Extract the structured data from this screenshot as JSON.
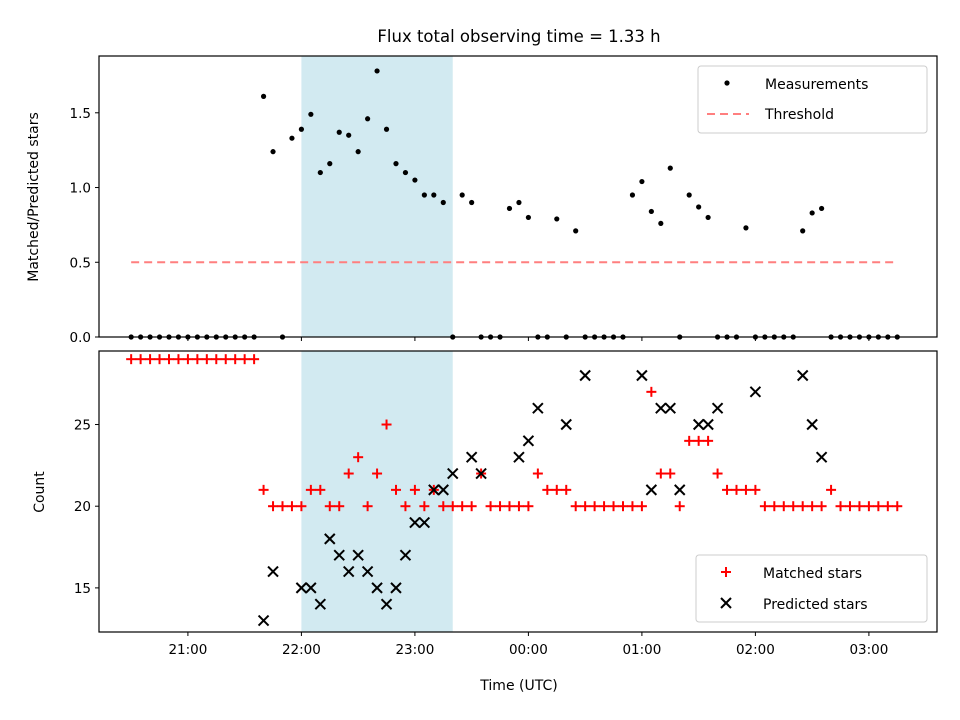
{
  "title": "Flux total observing time = 1.33 h",
  "colors": {
    "measurement": "#000000",
    "threshold": "#ff7f7f",
    "matched": "#ff0000",
    "predicted": "#000000",
    "shade": "#add8e6"
  },
  "chart_data": [
    {
      "type": "scatter",
      "ylabel": "Matched/Predicted stars",
      "ylim": [
        0,
        1.88
      ],
      "yticks": [
        "0.0",
        "0.5",
        "1.0",
        "1.5"
      ],
      "legend": [
        "Measurements",
        "Threshold"
      ],
      "legend_position": "top-right",
      "threshold": {
        "name": "Threshold",
        "value": 0.5,
        "x_start": "20:30",
        "x_end": "03:15"
      },
      "shaded_interval": [
        "22:00",
        "23:20"
      ],
      "measurements": {
        "name": "Measurements",
        "x": [
          "20:30",
          "20:35",
          "20:40",
          "20:45",
          "20:50",
          "20:55",
          "21:00",
          "21:05",
          "21:10",
          "21:15",
          "21:20",
          "21:25",
          "21:30",
          "21:35",
          "21:40",
          "21:45",
          "21:50",
          "21:55",
          "22:00",
          "22:05",
          "22:10",
          "22:15",
          "22:20",
          "22:25",
          "22:30",
          "22:35",
          "22:40",
          "22:45",
          "22:50",
          "22:55",
          "23:00",
          "23:05",
          "23:10",
          "23:15",
          "23:20",
          "23:25",
          "23:30",
          "23:35",
          "23:40",
          "23:45",
          "23:50",
          "23:55",
          "00:00",
          "00:05",
          "00:10",
          "00:15",
          "00:20",
          "00:25",
          "00:30",
          "00:35",
          "00:40",
          "00:45",
          "00:50",
          "00:55",
          "01:00",
          "01:05",
          "01:10",
          "01:15",
          "01:20",
          "01:25",
          "01:30",
          "01:35",
          "01:40",
          "01:45",
          "01:50",
          "01:55",
          "02:00",
          "02:05",
          "02:10",
          "02:15",
          "02:20",
          "02:25",
          "02:30",
          "02:35",
          "02:40",
          "02:45",
          "02:50",
          "02:55",
          "03:00",
          "03:05",
          "03:10",
          "03:15"
        ],
        "y": [
          0,
          0,
          0,
          0,
          0,
          0,
          0,
          0,
          0,
          0,
          0,
          0,
          0,
          0,
          1.61,
          1.24,
          0,
          1.33,
          1.39,
          1.49,
          1.1,
          1.16,
          1.37,
          1.35,
          1.24,
          1.46,
          1.78,
          1.39,
          1.16,
          1.1,
          1.05,
          0.95,
          0.95,
          0.9,
          0,
          0.95,
          0.9,
          0,
          0,
          0,
          0.86,
          0.9,
          0.8,
          0,
          0,
          0.79,
          0,
          0.71,
          0,
          0,
          0,
          0,
          0,
          0.95,
          1.04,
          0.84,
          0.76,
          1.13,
          0,
          0.95,
          0.87,
          0.8,
          0,
          0,
          0,
          0.73,
          0,
          0,
          0,
          0,
          0,
          0.71,
          0.83,
          0.86,
          0,
          0,
          0,
          0,
          0,
          0,
          0,
          0
        ]
      }
    },
    {
      "type": "scatter",
      "xlabel": "Time (UTC)",
      "ylabel": "Count",
      "ylim": [
        12.3,
        29.5
      ],
      "yticks": [
        "15",
        "20",
        "25"
      ],
      "xticks": [
        "21:00",
        "22:00",
        "23:00",
        "00:00",
        "01:00",
        "02:00",
        "03:00"
      ],
      "x_range": [
        "20:13",
        "03:36"
      ],
      "legend": [
        "Matched stars",
        "Predicted stars"
      ],
      "legend_position": "bottom-right",
      "shaded_interval": [
        "22:00",
        "23:20"
      ],
      "series": [
        {
          "name": "Matched stars",
          "marker": "plus",
          "x": [
            "20:30",
            "20:35",
            "20:40",
            "20:45",
            "20:50",
            "20:55",
            "21:00",
            "21:05",
            "21:10",
            "21:15",
            "21:20",
            "21:25",
            "21:30",
            "21:35",
            "21:40",
            "21:45",
            "21:50",
            "21:55",
            "22:00",
            "22:05",
            "22:10",
            "22:15",
            "22:20",
            "22:25",
            "22:30",
            "22:35",
            "22:40",
            "22:45",
            "22:50",
            "22:55",
            "23:00",
            "23:05",
            "23:10",
            "23:15",
            "23:20",
            "23:25",
            "23:30",
            "23:35",
            "23:40",
            "23:45",
            "23:50",
            "23:55",
            "00:00",
            "00:05",
            "00:10",
            "00:15",
            "00:20",
            "00:25",
            "00:30",
            "00:35",
            "00:40",
            "00:45",
            "00:50",
            "00:55",
            "01:00",
            "01:05",
            "01:10",
            "01:15",
            "01:20",
            "01:25",
            "01:30",
            "01:35",
            "01:40",
            "01:45",
            "01:50",
            "01:55",
            "02:00",
            "02:05",
            "02:10",
            "02:15",
            "02:20",
            "02:25",
            "02:30",
            "02:35",
            "02:40",
            "02:45",
            "02:50",
            "02:55",
            "03:00",
            "03:05",
            "03:10",
            "03:15"
          ],
          "y": [
            29,
            29,
            29,
            29,
            29,
            29,
            29,
            29,
            29,
            29,
            29,
            29,
            29,
            29,
            21,
            20,
            20,
            20,
            20,
            21,
            21,
            20,
            20,
            22,
            23,
            20,
            22,
            25,
            21,
            20,
            21,
            20,
            21,
            20,
            20,
            20,
            20,
            22,
            20,
            20,
            20,
            20,
            20,
            22,
            21,
            21,
            21,
            20,
            20,
            20,
            20,
            20,
            20,
            20,
            20,
            27,
            22,
            22,
            20,
            24,
            24,
            24,
            22,
            21,
            21,
            21,
            21,
            20,
            20,
            20,
            20,
            20,
            20,
            20,
            21,
            20,
            20,
            20,
            20,
            20,
            20,
            20
          ]
        },
        {
          "name": "Predicted stars",
          "marker": "x",
          "x": [
            "21:40",
            "21:45",
            "22:00",
            "22:05",
            "22:10",
            "22:15",
            "22:20",
            "22:25",
            "22:30",
            "22:35",
            "22:40",
            "22:45",
            "22:50",
            "22:55",
            "23:00",
            "23:05",
            "23:10",
            "23:15",
            "23:20",
            "23:25",
            "23:30",
            "23:35",
            "23:55",
            "00:00",
            "00:05",
            "00:20",
            "00:30",
            "01:00",
            "01:05",
            "01:10",
            "01:15",
            "01:20",
            "01:30",
            "01:35",
            "01:40",
            "02:00",
            "02:25",
            "02:30",
            "02:35"
          ],
          "y": [
            13,
            16,
            15,
            15,
            14,
            18,
            17,
            16,
            17,
            16,
            15,
            14,
            15,
            17,
            19,
            19,
            21,
            21,
            22,
            null,
            23,
            22,
            23,
            24,
            26,
            25,
            28,
            28,
            21,
            26,
            26,
            21,
            25,
            25,
            26,
            27,
            28,
            25,
            23
          ]
        }
      ]
    }
  ]
}
